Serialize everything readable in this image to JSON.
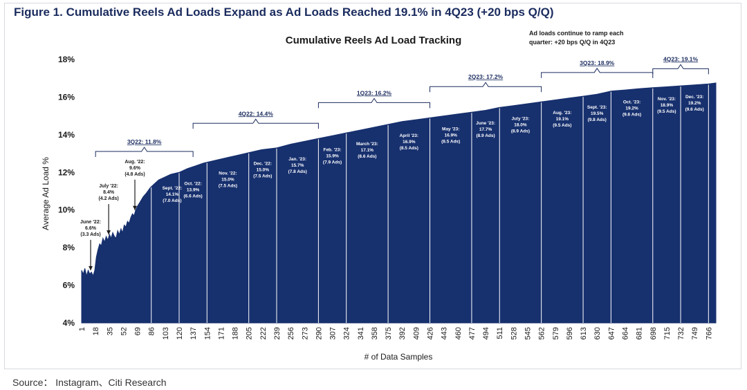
{
  "figure_title": "Figure 1. Cumulative Reels Ad Loads Expand as Ad Loads Reached 19.1% in 4Q23 (+20 bps Q/Q)",
  "source": "Source： Instagram、Citi Research",
  "colors": {
    "fill": "#17306e",
    "text": "#1a1a1a",
    "bracket": "#1a2b5e"
  },
  "chart_data": {
    "type": "area",
    "title": "Cumulative Reels Ad Load Tracking",
    "xlabel": "# of Data Samples",
    "ylabel": "Average Ad Load %",
    "ylim": [
      4,
      18
    ],
    "xlim": [
      1,
      775
    ],
    "yticks": [
      4,
      6,
      8,
      10,
      12,
      14,
      16,
      18
    ],
    "ytick_labels": [
      "4%",
      "6%",
      "8%",
      "10%",
      "12%",
      "14%",
      "16%",
      "18%"
    ],
    "xticks": [
      1,
      18,
      35,
      52,
      69,
      86,
      103,
      120,
      137,
      154,
      171,
      188,
      205,
      222,
      239,
      256,
      273,
      290,
      307,
      324,
      341,
      358,
      375,
      392,
      409,
      426,
      443,
      460,
      477,
      494,
      511,
      528,
      545,
      562,
      579,
      596,
      613,
      630,
      647,
      664,
      681,
      698,
      715,
      732,
      749,
      766
    ],
    "note": [
      "Ad loads continue to ramp each",
      "quarter: +20 bps Q/Q in 4Q23"
    ],
    "series": [
      {
        "x": [
          1,
          3,
          5,
          7,
          9,
          11,
          13,
          15,
          17,
          19,
          21,
          23,
          25,
          27,
          29,
          31,
          33,
          35,
          37,
          39,
          41,
          43,
          45,
          47,
          49,
          51,
          53,
          55,
          57,
          59,
          61,
          63,
          65,
          67,
          69,
          72,
          76,
          80,
          85,
          90,
          95,
          100,
          105,
          110,
          115,
          120,
          130,
          140,
          150,
          160,
          170,
          180,
          190,
          200,
          210,
          220,
          239,
          256,
          273,
          290,
          307,
          324,
          341,
          358,
          375,
          392,
          409,
          426,
          443,
          460,
          477,
          494,
          511,
          528,
          545,
          562,
          579,
          596,
          613,
          630,
          640,
          647,
          664,
          681,
          698,
          715,
          732,
          749,
          766,
          775
        ],
        "y": [
          6.8,
          6.6,
          6.9,
          6.5,
          6.8,
          6.6,
          6.7,
          6.5,
          6.8,
          7.5,
          7.9,
          8.2,
          8.1,
          8.5,
          8.3,
          8.6,
          8.4,
          8.7,
          8.5,
          8.8,
          8.6,
          8.5,
          8.9,
          8.7,
          9.0,
          8.8,
          9.2,
          9.1,
          9.4,
          9.3,
          9.6,
          9.8,
          9.7,
          10.0,
          10.2,
          10.4,
          10.7,
          10.9,
          11.2,
          11.4,
          11.6,
          11.7,
          11.8,
          11.9,
          11.95,
          12.0,
          12.2,
          12.35,
          12.5,
          12.6,
          12.7,
          12.8,
          12.9,
          13.0,
          13.1,
          13.2,
          13.3,
          13.5,
          13.65,
          13.8,
          13.95,
          14.1,
          14.25,
          14.4,
          14.55,
          14.7,
          14.8,
          14.9,
          15.0,
          15.1,
          15.2,
          15.3,
          15.45,
          15.55,
          15.65,
          15.75,
          15.85,
          15.95,
          16.05,
          16.15,
          16.25,
          16.32,
          16.38,
          16.45,
          16.5,
          16.55,
          16.6,
          16.65,
          16.7,
          16.75
        ]
      }
    ],
    "month_markers": [
      {
        "x": 120,
        "lines": [
          "Oct. '22:",
          "13.9%",
          "(6.6 Ads)"
        ]
      },
      {
        "x": 154,
        "lines": [
          "Nov. '22:",
          "15.0%",
          "(7.5 Ads)"
        ]
      },
      {
        "x": 205,
        "lines": [
          "Dec. '22:",
          "15.0%",
          "(7.5 Ads)"
        ]
      },
      {
        "x": 239,
        "lines": [
          "Jan. '23:",
          "15.7%",
          "(7.8 Ads)"
        ]
      },
      {
        "x": 290,
        "lines": [
          "Feb. '23:",
          "15.9%",
          "(7.9 Ads)"
        ]
      },
      {
        "x": 324,
        "lines": [
          "March '23:",
          "17.1%",
          "(8.6 Ads)"
        ]
      },
      {
        "x": 375,
        "lines": [
          "April '23:",
          "16.9%",
          "(8.5 Ads)"
        ]
      },
      {
        "x": 426,
        "lines": [
          "May '23:",
          "16.9%",
          "(8.5 Ads)"
        ]
      },
      {
        "x": 477,
        "lines": [
          "June '23:",
          "17.7%",
          "(8.9 Ads)"
        ]
      },
      {
        "x": 511,
        "lines": [
          "July '23:",
          "18.0%",
          "(8.9 Ads)"
        ]
      },
      {
        "x": 562,
        "lines": [
          "Aug. '23:",
          "19.1%",
          "(9.5 Ads)"
        ]
      },
      {
        "x": 613,
        "lines": [
          "Sept. '23:",
          "19.5%",
          "(9.8 Ads)"
        ]
      },
      {
        "x": 647,
        "lines": [
          "Oct. '23:",
          "19.2%",
          "(9.6 Ads)"
        ]
      },
      {
        "x": 698,
        "lines": [
          "Nov. '23:",
          "18.9%",
          "(9.5 Ads)"
        ]
      },
      {
        "x": 732,
        "lines": [
          "Dec. '23:",
          "19.2%",
          "(9.6 Ads)"
        ]
      }
    ],
    "sept22_label": {
      "x": 103,
      "lines": [
        "Sept. '22:",
        "14.1%",
        "(7.0 Ads)"
      ]
    },
    "callouts": [
      {
        "x": 12,
        "lines": [
          "June '22:",
          "6.6%",
          "(3.3 Ads)"
        ]
      },
      {
        "x": 34,
        "lines": [
          "July '22:",
          "8.4%",
          "(4.2 Ads)"
        ]
      },
      {
        "x": 66,
        "lines": [
          "Aug. '22:",
          "9.6%",
          "(4.8 Ads)"
        ]
      }
    ],
    "quarter_brackets": [
      {
        "label": "3Q22: 11.8%",
        "x0": 18,
        "x1": 137
      },
      {
        "label": "4Q22: 14.4%",
        "x0": 137,
        "x1": 290
      },
      {
        "label": "1Q23: 16.2%",
        "x0": 290,
        "x1": 426
      },
      {
        "label": "2Q23: 17.2%",
        "x0": 426,
        "x1": 562
      },
      {
        "label": "3Q23: 18.9%",
        "x0": 562,
        "x1": 698
      },
      {
        "label": "4Q23: 19.1%",
        "x0": 698,
        "x1": 815
      }
    ]
  }
}
